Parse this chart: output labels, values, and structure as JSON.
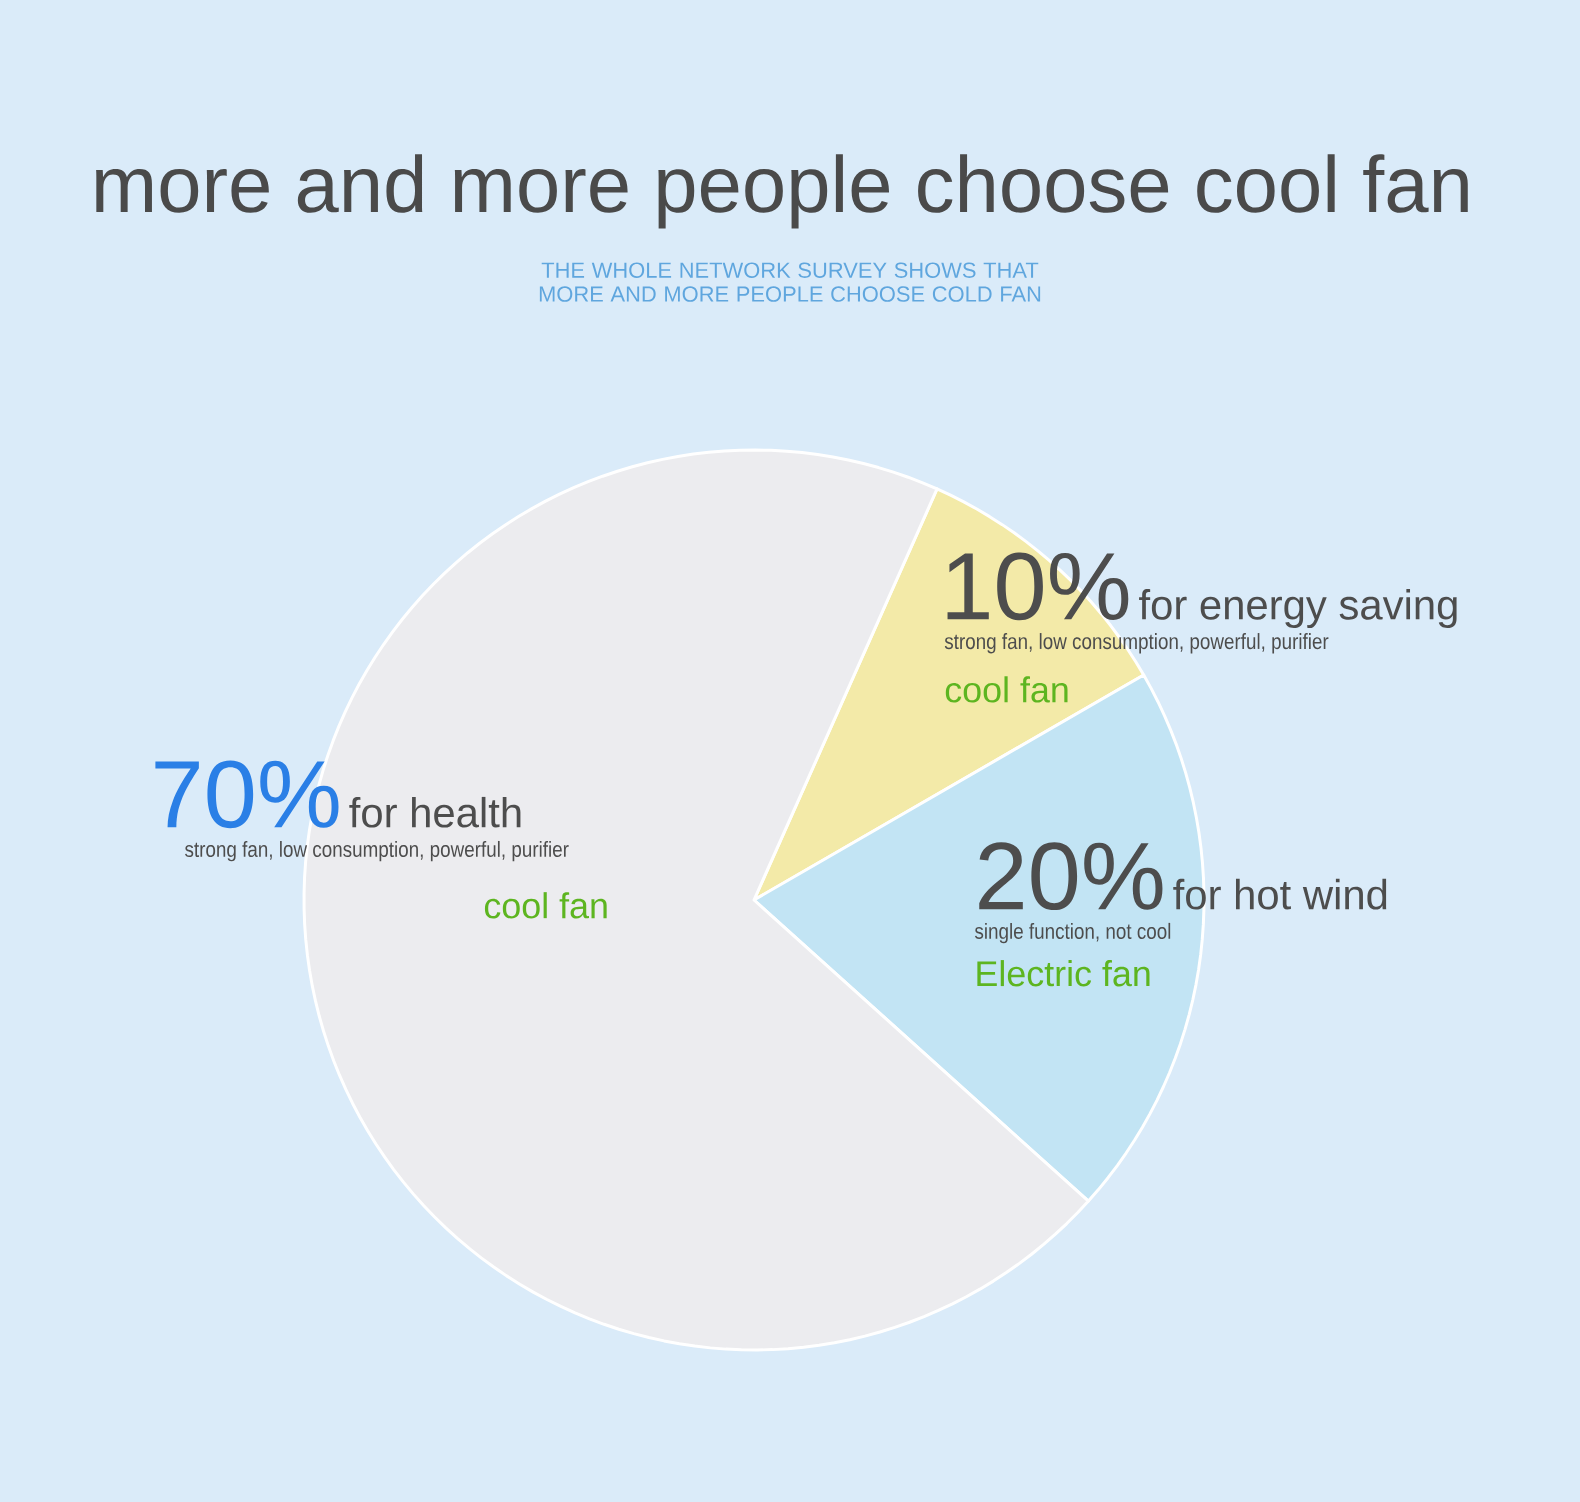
{
  "chart_data": {
    "type": "pie",
    "title": "more and more people choose cool fan",
    "subtitle": "THE WHOLE NETWORK SURVEY SHOWS THAT MORE AND MORE PEOPLE CHOOSE COLD FAN",
    "categories": [
      "for energy saving",
      "for hot wind",
      "for health"
    ],
    "values": [
      10,
      20,
      70
    ],
    "value_labels": [
      "10%",
      "20%",
      "70%"
    ],
    "colors": [
      "#f3eaa8",
      "#c2e4f4",
      "#ececef"
    ],
    "annotations": [
      "strong fan, low consumption, powerful, purifier",
      "cool fan",
      "single function, not cool",
      "Electric fan",
      "strong fan, low consumption, powerful, purifier",
      "cool fan"
    ]
  }
}
